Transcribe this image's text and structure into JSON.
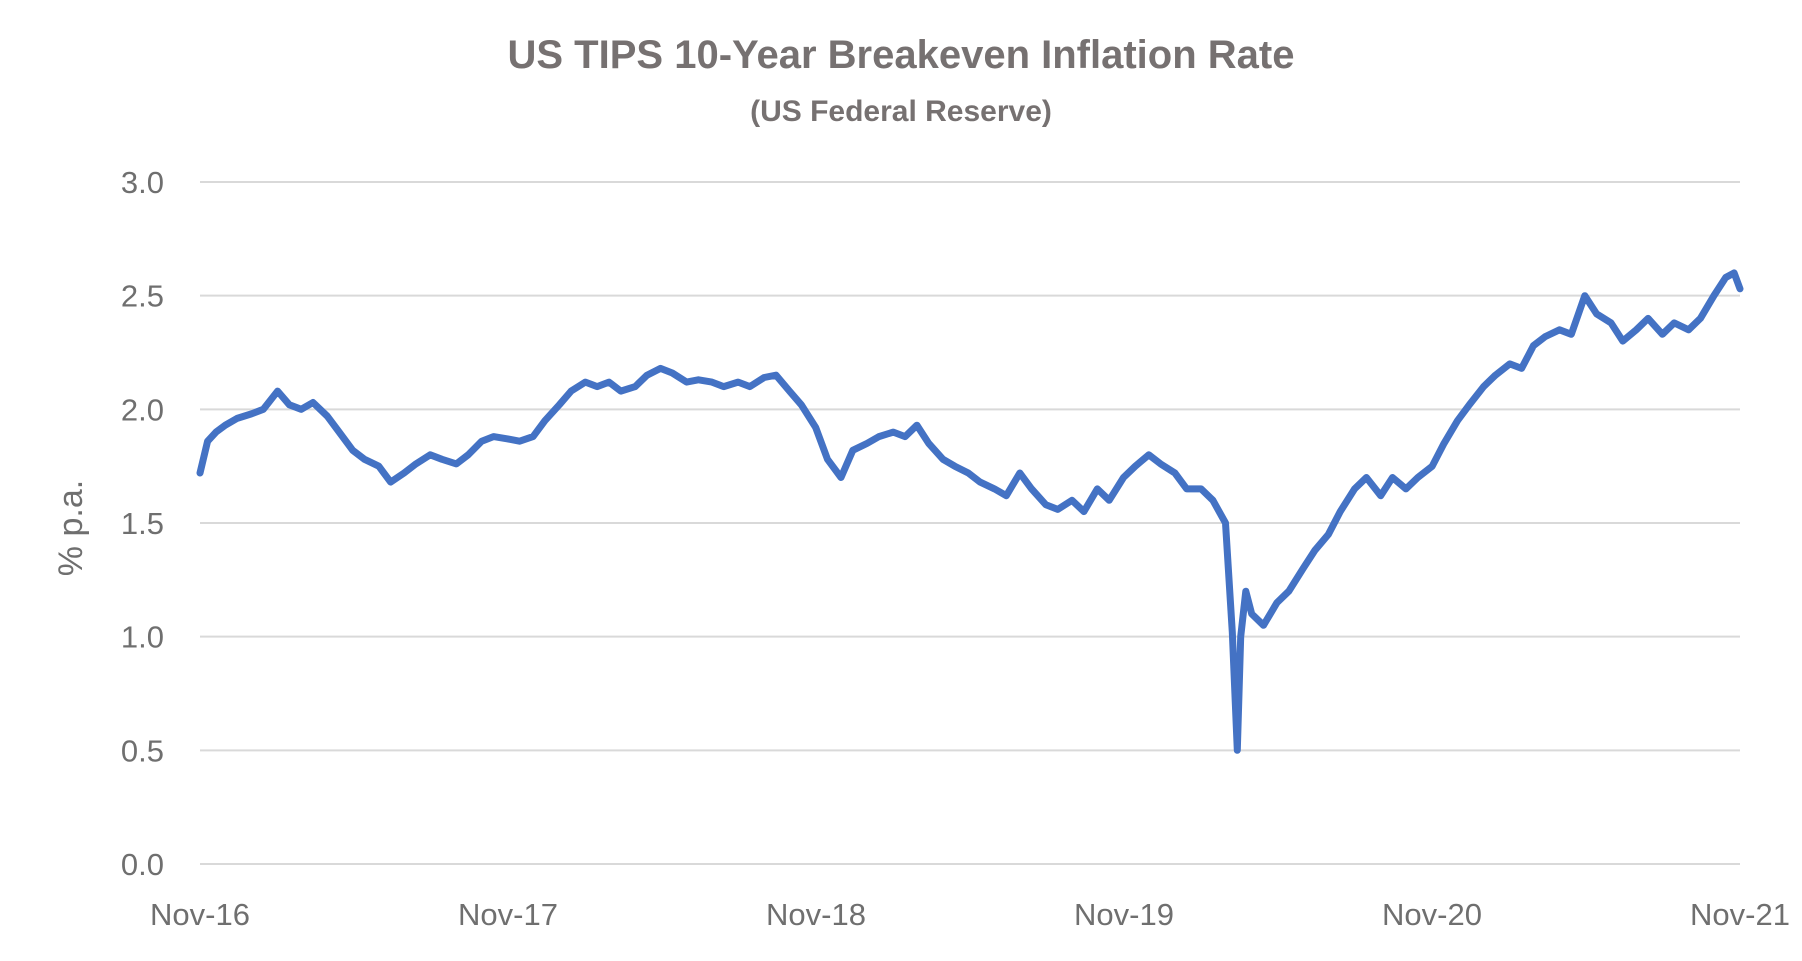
{
  "chart_data": {
    "type": "line",
    "title": "US TIPS 10-Year Breakeven Inflation Rate",
    "subtitle": "(US Federal Reserve)",
    "xlabel": "",
    "ylabel": "% p.a.",
    "ylim": [
      0,
      3
    ],
    "y_ticks": [
      "0.0",
      "0.5",
      "1.0",
      "1.5",
      "2.0",
      "2.5",
      "3.0"
    ],
    "x_ticks": [
      "Nov-16",
      "Nov-17",
      "Nov-18",
      "Nov-19",
      "Nov-20",
      "Nov-21"
    ],
    "grid": "horizontal",
    "legend": "none",
    "colors": {
      "line": "#4472c4",
      "grid": "#d9d9d9",
      "text": "#767171"
    },
    "series": [
      {
        "x": [
          "2016-11-01",
          "2016-11-10",
          "2016-11-20",
          "2016-12-01",
          "2016-12-15",
          "2017-01-01",
          "2017-01-15",
          "2017-02-01",
          "2017-02-15",
          "2017-03-01",
          "2017-03-15",
          "2017-04-01",
          "2017-04-15",
          "2017-05-01",
          "2017-05-15",
          "2017-06-01",
          "2017-06-15",
          "2017-07-01",
          "2017-07-15",
          "2017-08-01",
          "2017-08-15",
          "2017-09-01",
          "2017-09-15",
          "2017-10-01",
          "2017-10-15",
          "2017-11-01",
          "2017-11-15",
          "2017-12-01",
          "2017-12-15",
          "2018-01-01",
          "2018-01-15",
          "2018-02-01",
          "2018-02-15",
          "2018-03-01",
          "2018-03-15",
          "2018-04-01",
          "2018-04-15",
          "2018-05-01",
          "2018-05-15",
          "2018-06-01",
          "2018-06-15",
          "2018-07-01",
          "2018-07-15",
          "2018-08-01",
          "2018-08-15",
          "2018-09-01",
          "2018-09-15",
          "2018-10-01",
          "2018-10-15",
          "2018-11-01",
          "2018-11-15",
          "2018-12-01",
          "2018-12-15",
          "2019-01-01",
          "2019-01-15",
          "2019-02-01",
          "2019-02-15",
          "2019-03-01",
          "2019-03-15",
          "2019-04-01",
          "2019-04-15",
          "2019-05-01",
          "2019-05-15",
          "2019-06-01",
          "2019-06-15",
          "2019-07-01",
          "2019-07-15",
          "2019-08-01",
          "2019-08-15",
          "2019-09-01",
          "2019-09-15",
          "2019-10-01",
          "2019-10-15",
          "2019-11-01",
          "2019-11-15",
          "2019-12-01",
          "2019-12-15",
          "2020-01-01",
          "2020-01-15",
          "2020-02-01",
          "2020-02-15",
          "2020-03-01",
          "2020-03-09",
          "2020-03-15",
          "2020-03-19",
          "2020-03-25",
          "2020-04-01",
          "2020-04-15",
          "2020-05-01",
          "2020-05-15",
          "2020-06-01",
          "2020-06-15",
          "2020-07-01",
          "2020-07-15",
          "2020-08-01",
          "2020-08-15",
          "2020-09-01",
          "2020-09-15",
          "2020-10-01",
          "2020-10-15",
          "2020-11-01",
          "2020-11-15",
          "2020-12-01",
          "2020-12-15",
          "2021-01-01",
          "2021-01-15",
          "2021-02-01",
          "2021-02-15",
          "2021-03-01",
          "2021-03-15",
          "2021-04-01",
          "2021-04-15",
          "2021-05-01",
          "2021-05-15",
          "2021-06-01",
          "2021-06-15",
          "2021-07-01",
          "2021-07-15",
          "2021-08-01",
          "2021-08-15",
          "2021-09-01",
          "2021-09-15",
          "2021-10-01",
          "2021-10-15",
          "2021-10-25",
          "2021-11-01"
        ],
        "y": [
          1.72,
          1.86,
          1.9,
          1.93,
          1.96,
          1.98,
          2.0,
          2.08,
          2.02,
          2.0,
          2.03,
          1.97,
          1.9,
          1.82,
          1.78,
          1.75,
          1.68,
          1.72,
          1.76,
          1.8,
          1.78,
          1.76,
          1.8,
          1.86,
          1.88,
          1.87,
          1.86,
          1.88,
          1.95,
          2.02,
          2.08,
          2.12,
          2.1,
          2.12,
          2.08,
          2.1,
          2.15,
          2.18,
          2.16,
          2.12,
          2.13,
          2.12,
          2.1,
          2.12,
          2.1,
          2.14,
          2.15,
          2.08,
          2.02,
          1.92,
          1.78,
          1.7,
          1.82,
          1.85,
          1.88,
          1.9,
          1.88,
          1.93,
          1.85,
          1.78,
          1.75,
          1.72,
          1.68,
          1.65,
          1.62,
          1.72,
          1.65,
          1.58,
          1.56,
          1.6,
          1.55,
          1.65,
          1.6,
          1.7,
          1.75,
          1.8,
          1.76,
          1.72,
          1.65,
          1.65,
          1.6,
          1.5,
          1.02,
          0.5,
          1.0,
          1.2,
          1.1,
          1.05,
          1.15,
          1.2,
          1.3,
          1.38,
          1.45,
          1.55,
          1.65,
          1.7,
          1.62,
          1.7,
          1.65,
          1.7,
          1.75,
          1.85,
          1.95,
          2.02,
          2.1,
          2.15,
          2.2,
          2.18,
          2.28,
          2.32,
          2.35,
          2.33,
          2.5,
          2.42,
          2.38,
          2.3,
          2.35,
          2.4,
          2.33,
          2.38,
          2.35,
          2.4,
          2.5,
          2.58,
          2.6,
          2.53
        ]
      }
    ]
  }
}
